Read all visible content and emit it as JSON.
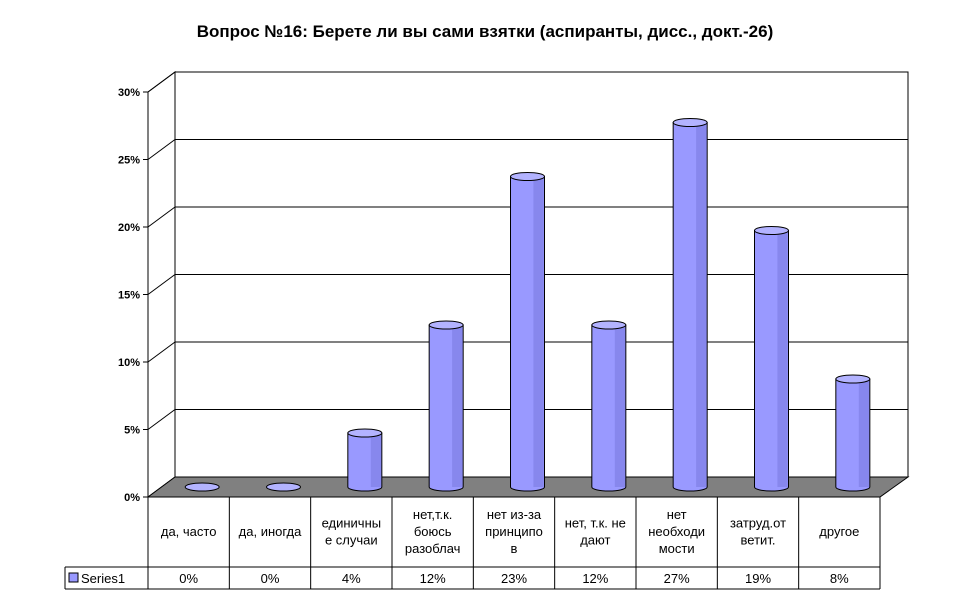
{
  "chart_data": {
    "type": "bar",
    "title": "Вопрос №16: Берете ли вы сами взятки (аспиранты, дисс., докт.-26)",
    "categories": [
      [
        "да, часто"
      ],
      [
        "да, иногда"
      ],
      [
        "единичны",
        "е случаи"
      ],
      [
        "нет,т.к.",
        "боюсь",
        "разоблач"
      ],
      [
        "нет из-за",
        "принципо",
        "в"
      ],
      [
        "нет, т.к. не",
        "дают"
      ],
      [
        "нет",
        "необходи",
        "мости"
      ],
      [
        "затруд.от",
        "ветит."
      ],
      [
        "другое"
      ]
    ],
    "series": [
      {
        "name": "Series1",
        "values": [
          0,
          0,
          4,
          12,
          23,
          12,
          27,
          19,
          8
        ],
        "labels": [
          "0%",
          "0%",
          "4%",
          "12%",
          "23%",
          "12%",
          "27%",
          "19%",
          "8%"
        ]
      }
    ],
    "y_ticks": [
      "0%",
      "5%",
      "10%",
      "15%",
      "20%",
      "25%",
      "30%"
    ],
    "ylim": [
      0,
      30
    ],
    "grid": true,
    "legend_in_table": true,
    "colors": {
      "bar_fill": "#9999ff",
      "bar_top": "#b3b3ff",
      "bar_dark": "#6666cc",
      "floor": "#808080",
      "wall": "#ffffff",
      "gridline": "#000000"
    }
  }
}
